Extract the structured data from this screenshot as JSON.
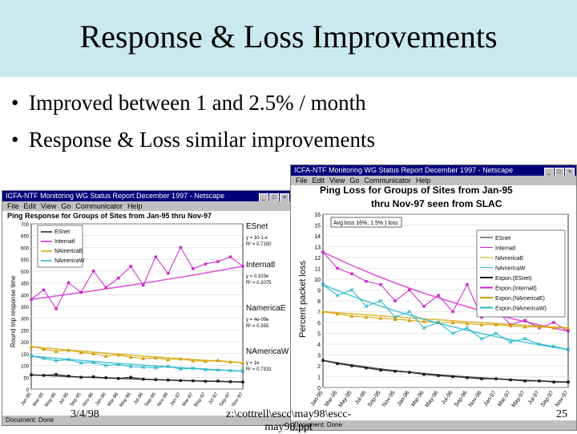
{
  "slide": {
    "title": "Response & Loss Improvements",
    "bullets": [
      "Improved between 1 and 2.5% / month",
      "Response & Loss similar improvements"
    ],
    "bullet_glyph": "•"
  },
  "left_window": {
    "title": "ICFA-NTF Monitoring WG Status Report December 1997 - Netscape",
    "menu": [
      "File",
      "Edit",
      "View",
      "Go",
      "Communicator",
      "Help"
    ],
    "status": "Document: Done",
    "chart_title": "Ping Response for Groups of Sites from Jan-95 thru Nov-97",
    "ylabel": "Round trip response time",
    "y_ticks": [
      "700",
      "650",
      "600",
      "550",
      "500",
      "450",
      "400",
      "350",
      "300",
      "250",
      "200",
      "150",
      "100",
      "50",
      "0"
    ],
    "x_ticks": [
      "Jan-95",
      "Mar-95",
      "May-95",
      "Jul-95",
      "Sep-95",
      "Nov-95",
      "Jan-96",
      "Mar-96",
      "May-96",
      "Jul-96",
      "Sep-96",
      "Nov-96",
      "Jan-97",
      "Mar-97",
      "May-97",
      "Jul-97",
      "Sep-97",
      "Nov-97"
    ],
    "legend": [
      "ESnet",
      "Internatl",
      "NAmericaE",
      "NAmericaW"
    ],
    "group_labels": [
      {
        "label": "ESnet",
        "fit": "y = 10-1.e",
        "r2": "R² = 0.7150"
      },
      {
        "label": "Internatl",
        "fit": "y = 0.103e",
        "r2": "R² = 0.2075"
      },
      {
        "label": "NamericaE",
        "fit": "y = 4e-09e",
        "r2": "R² = 0.355"
      },
      {
        "label": "NAmericaW",
        "fit": "y = 1e",
        "r2": "R² = 0.7333"
      }
    ]
  },
  "right_window": {
    "title": "ICFA-NTF Monitoring WG Status Report December 1997 - Netscape",
    "menu": [
      "File",
      "Edit",
      "View",
      "Go",
      "Communicator",
      "Help"
    ],
    "status": "Document: Done",
    "chart_title_line1": "Ping Loss for Groups of Sites from Jan-95",
    "chart_title_line2": "thru Nov-97 seen from SLAC",
    "ylabel": "Percent packet loss",
    "y_ticks": [
      "16",
      "15",
      "14",
      "13",
      "12",
      "11",
      "10",
      "9",
      "8",
      "7",
      "6",
      "5",
      "4",
      "3",
      "2",
      "1",
      "0"
    ],
    "x_ticks": [
      "Jan-95",
      "Mar-95",
      "May-95",
      "Jul-95",
      "Sep-95",
      "Nov-95",
      "Jan-96",
      "Mar-96",
      "May-96",
      "Jul-96",
      "Sep-96",
      "Nov-96",
      "Jan-97",
      "Mar-97",
      "May-97",
      "Jul-97",
      "Sep-97",
      "Nov-97"
    ],
    "legend": [
      "ESnet",
      "Internatl",
      "NAmericaE",
      "NAmericaW",
      "Expon.(ESnet)",
      "Expon.(Internatl)",
      "Expon.(NAmericaE)",
      "Expon.(NAmericaW)"
    ],
    "annotation": "Avg loss 16%, 1.5% ) loss"
  },
  "footer": {
    "date": "3/4/98",
    "path_line1": "z:\\cottrell\\escc\\may98\\escc-",
    "path_line2": "may98.ppt",
    "page": "25"
  },
  "colors": {
    "esnet": "#1a1a1a",
    "internatl": "#cc22cc",
    "namericae": "#d4a000",
    "namericaw": "#20b5c8",
    "title_band": "#c9e9ee"
  },
  "chart_data": [
    {
      "type": "line",
      "title": "Ping Response for Groups of Sites from Jan-95 thru Nov-97",
      "ylabel": "Round trip response time",
      "ylim": [
        0,
        700
      ],
      "categories": [
        "Jan-95",
        "Mar-95",
        "May-95",
        "Jul-95",
        "Sep-95",
        "Nov-95",
        "Jan-96",
        "Mar-96",
        "May-96",
        "Jul-96",
        "Sep-96",
        "Nov-96",
        "Jan-97",
        "Mar-97",
        "May-97",
        "Jul-97",
        "Sep-97",
        "Nov-97"
      ],
      "series": [
        {
          "name": "ESnet",
          "values": [
            60,
            58,
            62,
            55,
            50,
            52,
            48,
            45,
            50,
            42,
            40,
            38,
            36,
            35,
            33,
            34,
            31,
            30
          ]
        },
        {
          "name": "Internatl",
          "values": [
            380,
            420,
            340,
            450,
            410,
            500,
            430,
            470,
            520,
            440,
            560,
            490,
            600,
            510,
            530,
            540,
            560,
            520
          ]
        },
        {
          "name": "NAmericaE",
          "values": [
            180,
            170,
            160,
            165,
            155,
            150,
            140,
            145,
            135,
            130,
            132,
            125,
            128,
            120,
            118,
            122,
            115,
            112
          ]
        },
        {
          "name": "NAmericaW",
          "values": [
            140,
            130,
            120,
            125,
            110,
            112,
            100,
            104,
            95,
            92,
            90,
            96,
            85,
            88,
            82,
            80,
            78,
            76
          ]
        }
      ]
    },
    {
      "type": "line",
      "title": "Ping Loss for Groups of Sites from Jan-95 thru Nov-97 seen from SLAC",
      "ylabel": "Percent packet loss",
      "ylim": [
        0,
        16
      ],
      "categories": [
        "Jan-95",
        "Mar-95",
        "May-95",
        "Jul-95",
        "Sep-95",
        "Nov-95",
        "Jan-96",
        "Mar-96",
        "May-96",
        "Jul-96",
        "Sep-96",
        "Nov-96",
        "Jan-97",
        "Mar-97",
        "May-97",
        "Jul-97",
        "Sep-97",
        "Nov-97"
      ],
      "series": [
        {
          "name": "ESnet",
          "values": [
            2.5,
            2.2,
            2.0,
            1.8,
            1.6,
            1.5,
            1.4,
            1.2,
            1.1,
            1.0,
            0.9,
            0.8,
            0.8,
            0.7,
            0.6,
            0.6,
            0.5,
            0.5
          ]
        },
        {
          "name": "Internatl",
          "values": [
            12.5,
            11.0,
            10.5,
            9.8,
            9.5,
            8.0,
            9.0,
            7.5,
            8.5,
            7.0,
            9.5,
            6.5,
            7.2,
            5.8,
            6.2,
            5.5,
            6.0,
            5.2
          ]
        },
        {
          "name": "NAmericaE",
          "values": [
            7.0,
            6.8,
            6.6,
            6.5,
            6.4,
            6.3,
            6.2,
            6.1,
            6.0,
            6.0,
            5.9,
            5.8,
            5.8,
            5.7,
            5.6,
            5.6,
            5.5,
            5.5
          ]
        },
        {
          "name": "NAmericaW",
          "values": [
            9.5,
            8.5,
            9.0,
            7.5,
            8.0,
            6.5,
            7.0,
            5.5,
            6.0,
            5.0,
            5.5,
            4.5,
            5.0,
            4.2,
            4.5,
            4.0,
            3.8,
            3.5
          ]
        }
      ]
    }
  ]
}
